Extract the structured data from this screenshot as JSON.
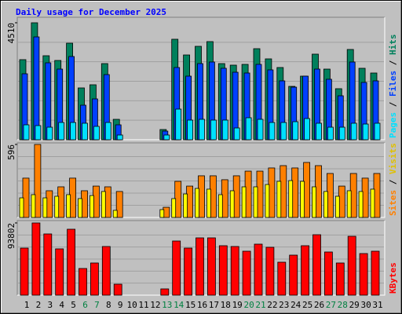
{
  "chart_data": {
    "type": "bar",
    "title": "Daily usage for December 2025",
    "categories": [
      "1",
      "2",
      "3",
      "4",
      "5",
      "6",
      "7",
      "8",
      "9",
      "10",
      "11",
      "12",
      "13",
      "14",
      "15",
      "16",
      "17",
      "18",
      "19",
      "20",
      "21",
      "22",
      "23",
      "24",
      "25",
      "26",
      "27",
      "28",
      "29",
      "30",
      "31"
    ],
    "category_colors": [
      "#000000",
      "#000000",
      "#000000",
      "#000000",
      "#000000",
      "#008040",
      "#008040",
      "#000000",
      "#000000",
      "#000000",
      "#000000",
      "#000000",
      "#008040",
      "#008040",
      "#000000",
      "#000000",
      "#000000",
      "#000000",
      "#000000",
      "#008040",
      "#008040",
      "#000000",
      "#000000",
      "#000000",
      "#000000",
      "#000000",
      "#008040",
      "#008040",
      "#000000",
      "#000000",
      "#000000"
    ],
    "legend_separator": " / ",
    "panels": [
      {
        "ylim": [
          0,
          4510
        ],
        "yticks": [
          4510
        ],
        "series": [
          {
            "name": "Hits",
            "color": "#00805c",
            "values": [
              3088,
              4510,
              3239,
              3057,
              3723,
              1998,
              2119,
              2936,
              787,
              0,
              0,
              0,
              394,
              3875,
              3269,
              3602,
              3784,
              2936,
              2876,
              2906,
              3511,
              3118,
              2785,
              2058,
              2452,
              3300,
              2724,
              1968,
              3481,
              2755,
              2573
            ]
          },
          {
            "name": "Files",
            "color": "#0040ff",
            "values": [
              2543,
              3965,
              2966,
              2724,
              3209,
              1332,
              1574,
              2512,
              575,
              0,
              0,
              0,
              333,
              2785,
              2452,
              2936,
              2997,
              2755,
              2603,
              2573,
              2906,
              2694,
              2270,
              2028,
              2452,
              2724,
              2331,
              1695,
              2997,
              2210,
              2270
            ]
          },
          {
            "name": "Pages",
            "color": "#00e0ff",
            "values": [
              575,
              545,
              484,
              666,
              666,
              636,
              515,
              666,
              182,
              0,
              0,
              0,
              182,
              1181,
              757,
              787,
              757,
              757,
              454,
              848,
              787,
              666,
              666,
              696,
              817,
              636,
              484,
              484,
              636,
              605,
              636
            ]
          }
        ]
      },
      {
        "ylim": [
          0,
          596
        ],
        "yticks": [
          596
        ],
        "series": [
          {
            "name": "Visits",
            "color": "#ffff00",
            "values": [
              160,
              186,
              160,
              173,
              186,
              154,
              179,
              212,
              58,
              0,
              0,
              0,
              64,
              154,
              192,
              237,
              231,
              186,
              218,
              250,
              250,
              269,
              295,
              301,
              295,
              250,
              212,
              173,
              218,
              212,
              231
            ]
          },
          {
            "name": "Sites",
            "color": "#ff8000",
            "values": [
              321,
              596,
              218,
              250,
              321,
              218,
              256,
              250,
              212,
              0,
              0,
              0,
              83,
              295,
              256,
              340,
              340,
              308,
              340,
              378,
              378,
              404,
              423,
              404,
              449,
              423,
              359,
              256,
              359,
              321,
              359
            ]
          }
        ]
      },
      {
        "ylim": [
          0,
          93802
        ],
        "yticks": [
          93802
        ],
        "series": [
          {
            "name": "KBytes",
            "color": "#ff0000",
            "values": [
              61176,
              93802,
              79529,
              60156,
              85646,
              34666,
              41804,
              63215,
              14274,
              0,
              0,
              0,
              8157,
              70352,
              61176,
              74431,
              74431,
              64235,
              63215,
              57098,
              66274,
              62196,
              42823,
              52000,
              64235,
              78509,
              56078,
              41804,
              76470,
              54039,
              57098
            ]
          }
        ]
      }
    ]
  }
}
